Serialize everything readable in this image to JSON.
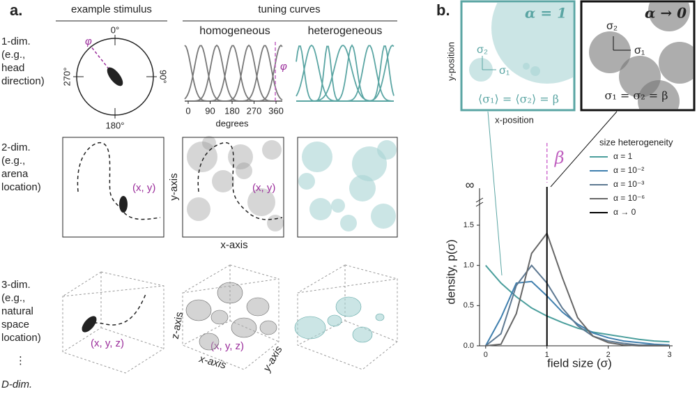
{
  "panel_a": {
    "label": "a.",
    "header_stimulus": "example stimulus",
    "header_tuning": "tuning curves",
    "header_homogeneous": "homogeneous",
    "header_heterogeneous": "heterogeneous",
    "rows": [
      {
        "lines": [
          "1-dim.",
          "(e.g.,",
          "head",
          "direction)"
        ]
      },
      {
        "lines": [
          "2-dim.",
          "(e.g.,",
          "arena",
          "location)"
        ]
      },
      {
        "lines": [
          "3-dim.",
          "(e.g.,",
          "natural",
          "space",
          "location)"
        ]
      }
    ],
    "ellipsis": "⋮",
    "d_dim": "D-dim.",
    "compass": [
      "0°",
      "90°",
      "180°",
      "270°"
    ],
    "phi": "φ",
    "tuning_ticks": [
      "0",
      "90",
      "180",
      "270",
      "360"
    ],
    "tuning_xlabel": "degrees",
    "point_2d": "(x, y)",
    "point_3d": "(x, y, z)",
    "y_axis": "y-axis",
    "x_axis": "x-axis",
    "z_axis": "z-axis"
  },
  "panel_b": {
    "label": "b.",
    "inset_left_alpha": "α = 1",
    "sigma2": "σ₂",
    "sigma1": "σ₁",
    "inset_left_eq": "⟨σ₁⟩ = ⟨σ₂⟩ = β",
    "y_position": "y-position",
    "x_position": "x-position",
    "inset_right_alpha": "α → 0",
    "inset_right_eq": "σ₁ = σ₂ = β",
    "beta": "β",
    "infinity": "∞"
  },
  "chart_data": {
    "type": "line",
    "xlabel": "field size (σ)",
    "ylabel": "density, p(σ)",
    "legend_title": "size heterogeneity",
    "x": [
      0,
      0.25,
      0.5,
      0.75,
      1,
      1.25,
      1.5,
      1.75,
      2,
      2.25,
      2.5,
      2.75,
      3
    ],
    "series": [
      {
        "name": "α = 1",
        "color": "#4a9e9c",
        "values": [
          1.0,
          0.78,
          0.61,
          0.47,
          0.37,
          0.29,
          0.22,
          0.17,
          0.14,
          0.11,
          0.08,
          0.06,
          0.05
        ]
      },
      {
        "name": "α = 10⁻²",
        "color": "#3f7fae",
        "values": [
          0,
          0.35,
          0.78,
          0.8,
          0.62,
          0.42,
          0.27,
          0.16,
          0.1,
          0.06,
          0.04,
          0.02,
          0.01
        ]
      },
      {
        "name": "α = 10⁻³",
        "color": "#5d7891",
        "values": [
          0,
          0.15,
          0.75,
          1.0,
          0.78,
          0.47,
          0.25,
          0.12,
          0.06,
          0.03,
          0.01,
          0.01,
          0
        ]
      },
      {
        "name": "α = 10⁻⁶",
        "color": "#666666",
        "values": [
          0,
          0.02,
          0.4,
          1.15,
          1.4,
          0.85,
          0.35,
          0.12,
          0.04,
          0.01,
          0,
          0,
          0
        ]
      },
      {
        "name": "α → 0",
        "color": "#000000",
        "delta_at": 1
      }
    ],
    "xlim": [
      -0.1,
      3.05
    ],
    "ylim": [
      0,
      1.5
    ],
    "xticks": [
      0,
      1,
      2,
      3
    ],
    "yticks": [
      {
        "value": 0,
        "label": "0.0"
      },
      {
        "value": 0.5,
        "label": "0.5"
      },
      {
        "value": 1,
        "label": "1.0"
      },
      {
        "value": 1.5,
        "label": "1.5"
      }
    ]
  }
}
